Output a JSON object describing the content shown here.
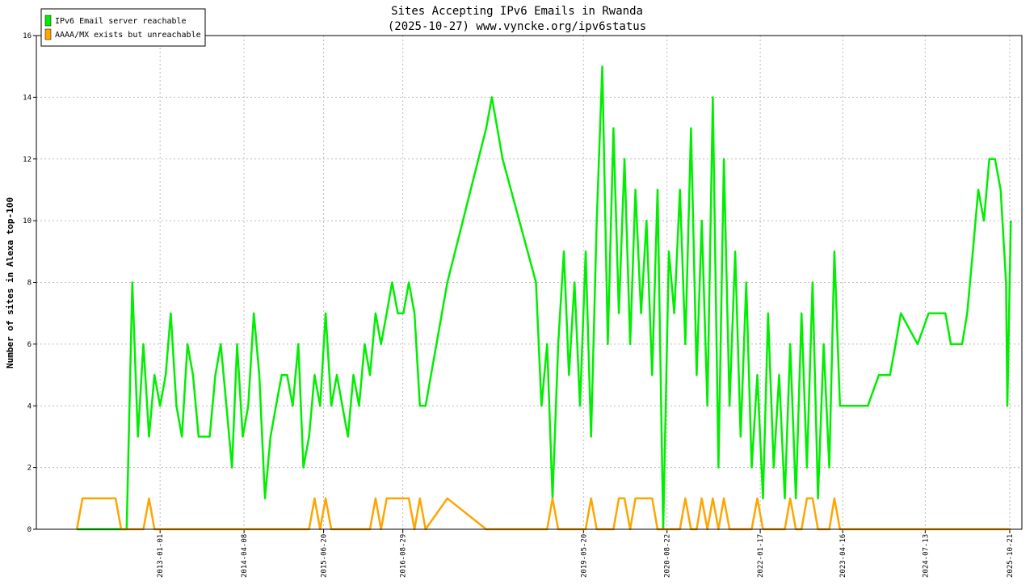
{
  "chart_data": {
    "type": "line",
    "title": "Sites Accepting IPv6 Emails in Rwanda",
    "subtitle": "(2025-10-27) www.vyncke.org/ipv6status",
    "y_label": "Number of sites in Alexa top-100",
    "ylim": [
      0,
      16
    ],
    "yticks": [
      0,
      2,
      4,
      6,
      8,
      10,
      12,
      14,
      16
    ],
    "grid": true,
    "xlim": [
      "2011-02-20",
      "2025-12-27"
    ],
    "xticks": [
      "2013-01-01",
      "2014-04-08",
      "2015-06-20",
      "2016-08-29",
      "2019-05-20",
      "2020-08-22",
      "2022-01-17",
      "2023-04-16",
      "2024-07-13",
      "2025-10-21"
    ],
    "legend": "upper left",
    "x": [
      "2011-10-01",
      "2011-11-01",
      "2011-12-01",
      "2012-01-01",
      "2012-02-01",
      "2012-03-01",
      "2012-04-01",
      "2012-05-01",
      "2012-06-01",
      "2012-07-01",
      "2012-08-01",
      "2012-09-01",
      "2012-10-01",
      "2012-11-01",
      "2012-12-01",
      "2013-01-01",
      "2013-02-01",
      "2013-03-01",
      "2013-04-01",
      "2013-05-01",
      "2013-06-01",
      "2013-07-01",
      "2013-08-01",
      "2013-09-01",
      "2013-10-01",
      "2013-11-01",
      "2013-12-01",
      "2014-01-01",
      "2014-02-01",
      "2014-03-01",
      "2014-04-01",
      "2014-05-01",
      "2014-06-01",
      "2014-07-01",
      "2014-08-01",
      "2014-09-01",
      "2014-10-01",
      "2014-11-01",
      "2014-12-01",
      "2015-01-01",
      "2015-02-01",
      "2015-03-01",
      "2015-04-01",
      "2015-05-01",
      "2015-06-01",
      "2015-07-01",
      "2015-08-01",
      "2015-09-01",
      "2015-10-01",
      "2015-11-01",
      "2015-12-01",
      "2016-01-01",
      "2016-02-01",
      "2016-03-01",
      "2016-04-01",
      "2016-05-01",
      "2016-06-01",
      "2016-07-01",
      "2016-08-01",
      "2016-09-01",
      "2016-10-01",
      "2016-11-01",
      "2016-12-01",
      "2017-01-01",
      "2017-05-01",
      "2017-12-01",
      "2018-01-01",
      "2018-03-01",
      "2018-09-01",
      "2018-10-01",
      "2018-11-01",
      "2018-12-01",
      "2019-01-01",
      "2019-02-01",
      "2019-03-01",
      "2019-04-01",
      "2019-05-01",
      "2019-06-01",
      "2019-07-01",
      "2019-08-01",
      "2019-09-01",
      "2019-10-01",
      "2019-11-01",
      "2019-12-01",
      "2020-01-01",
      "2020-02-01",
      "2020-03-01",
      "2020-04-01",
      "2020-05-01",
      "2020-06-01",
      "2020-07-01",
      "2020-08-01",
      "2020-09-01",
      "2020-10-01",
      "2020-11-01",
      "2020-12-01",
      "2021-01-01",
      "2021-02-01",
      "2021-03-01",
      "2021-04-01",
      "2021-05-01",
      "2021-06-01",
      "2021-07-01",
      "2021-08-01",
      "2021-09-01",
      "2021-10-01",
      "2021-11-01",
      "2021-12-01",
      "2022-01-01",
      "2022-02-01",
      "2022-03-01",
      "2022-04-01",
      "2022-05-01",
      "2022-06-01",
      "2022-07-01",
      "2022-08-01",
      "2022-09-01",
      "2022-10-01",
      "2022-11-01",
      "2022-12-01",
      "2023-01-01",
      "2023-02-01",
      "2023-03-01",
      "2023-04-01",
      "2023-06-01",
      "2023-09-01",
      "2023-11-01",
      "2024-01-01",
      "2024-02-01",
      "2024-03-01",
      "2024-06-01",
      "2024-08-01",
      "2024-11-01",
      "2024-12-01",
      "2025-02-01",
      "2025-03-01",
      "2025-04-01",
      "2025-05-01",
      "2025-06-01",
      "2025-07-01",
      "2025-08-01",
      "2025-09-01",
      "2025-10-01",
      "2025-10-08",
      "2025-10-27"
    ],
    "series": [
      {
        "name": "IPv6 Email server reachable",
        "color": "#00ee00",
        "values": [
          0,
          0,
          0,
          0,
          0,
          0,
          0,
          0,
          0,
          0,
          8,
          3,
          6,
          3,
          5,
          4,
          5,
          7,
          4,
          3,
          6,
          5,
          3,
          3,
          3,
          5,
          6,
          4,
          2,
          6,
          3,
          4,
          7,
          5,
          1,
          3,
          4,
          5,
          5,
          4,
          6,
          2,
          3,
          5,
          4,
          7,
          4,
          5,
          4,
          3,
          5,
          4,
          6,
          5,
          7,
          6,
          7,
          8,
          7,
          7,
          8,
          7,
          4,
          4,
          8,
          13,
          14,
          12,
          8,
          4,
          6,
          1,
          6,
          9,
          5,
          8,
          4,
          9,
          3,
          10,
          15,
          6,
          13,
          7,
          12,
          6,
          11,
          7,
          10,
          5,
          11,
          0,
          9,
          7,
          11,
          6,
          13,
          5,
          10,
          4,
          14,
          2,
          12,
          4,
          9,
          3,
          8,
          2,
          5,
          1,
          7,
          2,
          5,
          1,
          6,
          1,
          7,
          2,
          8,
          1,
          6,
          2,
          9,
          4,
          4,
          4,
          5,
          5,
          6,
          7,
          6,
          7,
          7,
          6,
          6,
          7,
          9,
          11,
          10,
          12,
          12,
          11,
          8,
          4,
          10
        ]
      },
      {
        "name": "AAAA/MX exists but unreachable",
        "color": "#ffa500",
        "values": [
          0,
          1,
          1,
          1,
          1,
          1,
          1,
          1,
          0,
          0,
          0,
          0,
          0,
          1,
          0,
          0,
          0,
          0,
          0,
          0,
          0,
          0,
          0,
          0,
          0,
          0,
          0,
          0,
          0,
          0,
          0,
          0,
          0,
          0,
          0,
          0,
          0,
          0,
          0,
          0,
          0,
          0,
          0,
          1,
          0,
          1,
          0,
          0,
          0,
          0,
          0,
          0,
          0,
          0,
          1,
          0,
          1,
          1,
          1,
          1,
          1,
          0,
          1,
          0,
          1,
          0,
          0,
          0,
          0,
          0,
          0,
          1,
          0,
          0,
          0,
          0,
          0,
          0,
          1,
          0,
          0,
          0,
          0,
          1,
          1,
          0,
          1,
          1,
          1,
          1,
          0,
          0,
          0,
          0,
          0,
          1,
          0,
          0,
          1,
          0,
          1,
          0,
          1,
          0,
          0,
          0,
          0,
          0,
          1,
          0,
          0,
          0,
          0,
          0,
          1,
          0,
          0,
          1,
          1,
          0,
          0,
          0,
          1,
          0,
          0,
          0,
          0,
          0,
          0,
          0,
          0,
          0,
          0,
          0,
          0,
          0,
          0,
          0,
          0,
          0,
          0,
          0,
          0,
          0,
          0
        ]
      }
    ]
  }
}
